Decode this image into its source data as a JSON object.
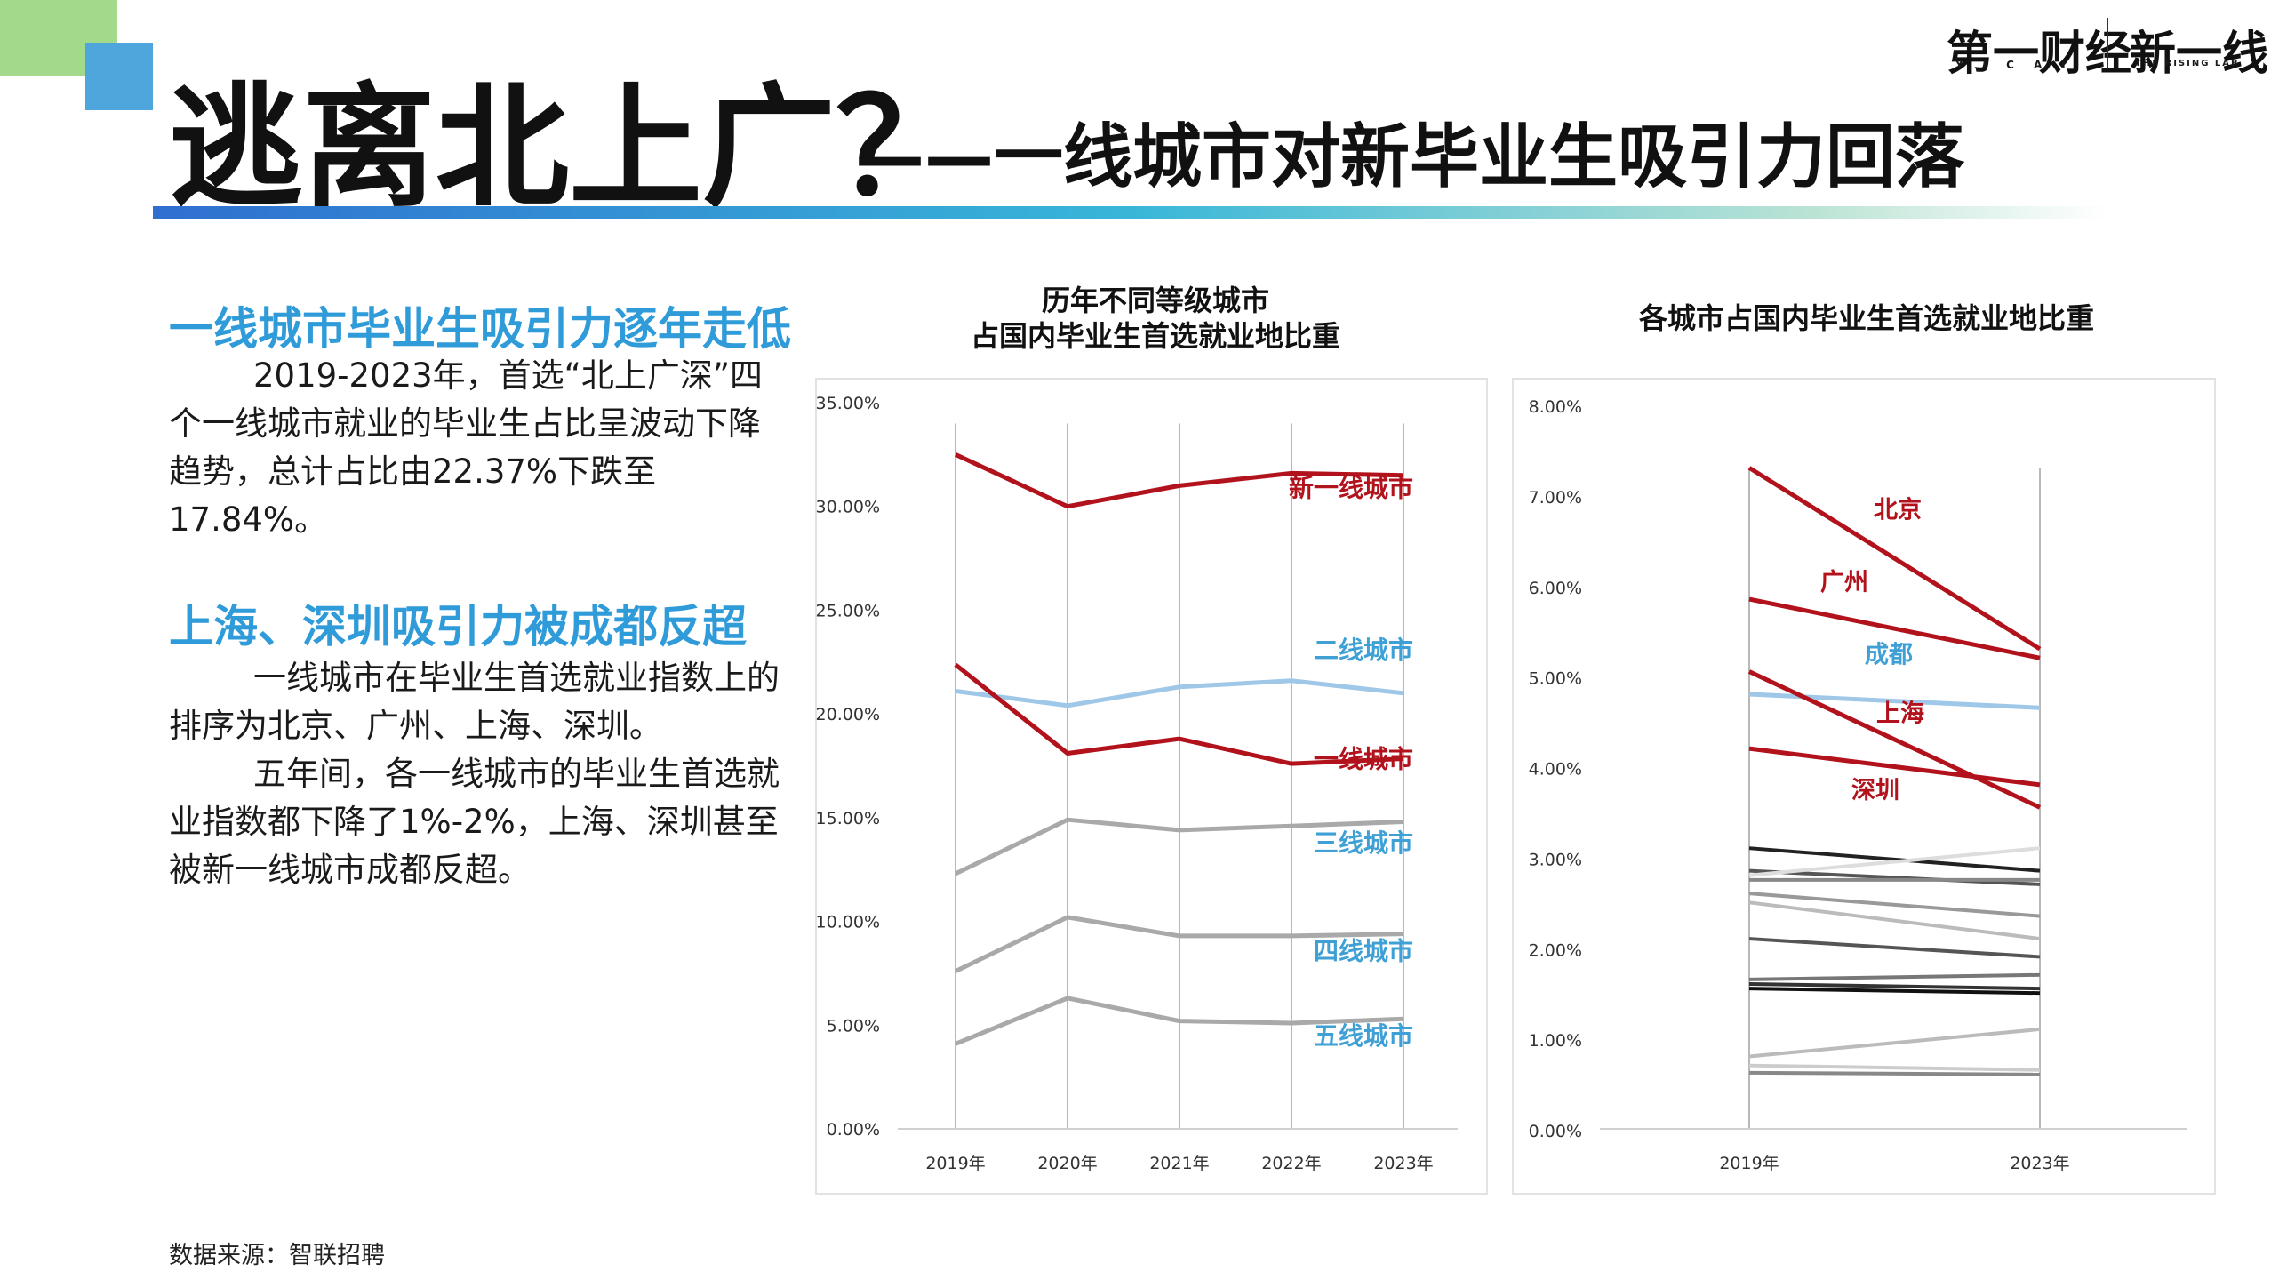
{
  "title": {
    "main": "逃离北上广？",
    "sub": "——一线城市对新毕业生吸引力回落"
  },
  "brand": {
    "name1": "第一财经",
    "name1_sub": "YICAI",
    "name2": "新一线",
    "name2_sub": "THE RISING LAB"
  },
  "left": {
    "heading1": "一线城市毕业生吸引力逐年走低",
    "para1": "2019-2023年，首选“北上广深”四个一线城市就业的毕业生占比呈波动下降趋势，总计占比由22.37%下跌至17.84%。",
    "heading2": "上海、深圳吸引力被成都反超",
    "para2a": "一线城市在毕业生首选就业指数上的排序为北京、广州、上海、深圳。",
    "para2b": "五年间，各一线城市的毕业生首选就业指数都下降了1%-2%，上海、深圳甚至被新一线城市成都反超。"
  },
  "source": "数据来源：智联招聘",
  "colors": {
    "red": "#b2121c",
    "lightblue": "#9ec7e8",
    "gray": "#a9a9a9",
    "label_blue": "#3fa0d6"
  },
  "chart_data": [
    {
      "type": "line",
      "title_line1": "历年不同等级城市",
      "title_line2": "占国内毕业生首选就业地比重",
      "categories": [
        "2019年",
        "2020年",
        "2021年",
        "2022年",
        "2023年"
      ],
      "ylim": [
        0,
        35
      ],
      "yticks": [
        "0.00%",
        "5.00%",
        "10.00%",
        "15.00%",
        "20.00%",
        "25.00%",
        "30.00%",
        "35.00%"
      ],
      "series": [
        {
          "name": "新一线城市",
          "values": [
            32.5,
            30.0,
            31.0,
            31.6,
            31.5
          ],
          "color": "#b2121c"
        },
        {
          "name": "二线城市",
          "values": [
            21.1,
            20.4,
            21.3,
            21.6,
            21.0
          ],
          "color": "#9ec7e8"
        },
        {
          "name": "一线城市",
          "values": [
            22.37,
            18.1,
            18.8,
            17.6,
            17.84
          ],
          "color": "#b2121c"
        },
        {
          "name": "三线城市",
          "values": [
            12.3,
            14.9,
            14.4,
            14.6,
            14.8
          ],
          "color": "#a9a9a9"
        },
        {
          "name": "四线城市",
          "values": [
            7.6,
            10.2,
            9.3,
            9.3,
            9.4
          ],
          "color": "#a9a9a9"
        },
        {
          "name": "五线城市",
          "values": [
            4.1,
            6.3,
            5.2,
            5.1,
            5.3
          ],
          "color": "#a9a9a9"
        }
      ]
    },
    {
      "type": "line",
      "title": "各城市占国内毕业生首选就业地比重",
      "categories": [
        "2019年",
        "2023年"
      ],
      "ylim": [
        0,
        8
      ],
      "yticks": [
        "0.00%",
        "1.00%",
        "2.00%",
        "3.00%",
        "4.00%",
        "5.00%",
        "6.00%",
        "7.00%",
        "8.00%"
      ],
      "series": [
        {
          "name": "北京",
          "values": [
            7.3,
            5.3
          ],
          "color": "#b2121c"
        },
        {
          "name": "广州",
          "values": [
            5.85,
            5.2
          ],
          "color": "#b2121c"
        },
        {
          "name": "成都",
          "values": [
            4.8,
            4.65
          ],
          "color": "#9ec7e8"
        },
        {
          "name": "上海",
          "values": [
            5.05,
            3.55
          ],
          "color": "#b2121c"
        },
        {
          "name": "深圳",
          "values": [
            4.2,
            3.8
          ],
          "color": "#b2121c"
        },
        {
          "values": [
            3.1,
            2.85
          ],
          "color": "#222222"
        },
        {
          "values": [
            2.85,
            2.7
          ],
          "color": "#555555"
        },
        {
          "values": [
            2.8,
            3.1
          ],
          "color": "#dddddd"
        },
        {
          "values": [
            2.75,
            2.75
          ],
          "color": "#888888"
        },
        {
          "values": [
            2.6,
            2.35
          ],
          "color": "#999999"
        },
        {
          "values": [
            2.5,
            2.1
          ],
          "color": "#bbbbbb"
        },
        {
          "values": [
            2.1,
            1.9
          ],
          "color": "#555555"
        },
        {
          "values": [
            1.65,
            1.7
          ],
          "color": "#777777"
        },
        {
          "values": [
            1.6,
            1.55
          ],
          "color": "#333333"
        },
        {
          "values": [
            1.55,
            1.5
          ],
          "color": "#111111"
        },
        {
          "values": [
            0.8,
            1.1
          ],
          "color": "#bbbbbb"
        },
        {
          "values": [
            0.7,
            0.65
          ],
          "color": "#cccccc"
        },
        {
          "values": [
            0.62,
            0.6
          ],
          "color": "#888888"
        }
      ]
    }
  ]
}
